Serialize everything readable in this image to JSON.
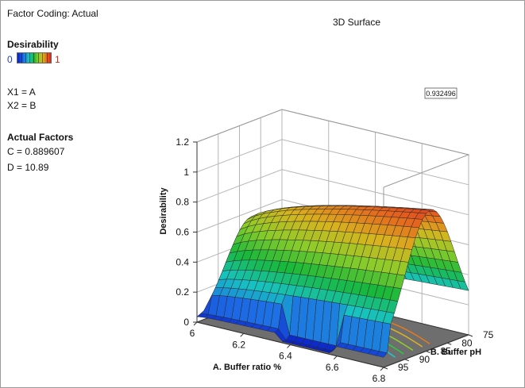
{
  "window": {
    "factor_coding": "Factor Coding: Actual",
    "plot_title": "3D Surface"
  },
  "legend": {
    "title": "Desirability",
    "min_label": "0",
    "max_label": "1",
    "colors": [
      "#0a1ec8",
      "#1e6ee6",
      "#17c2c2",
      "#18b83a",
      "#8ccc2a",
      "#d8b31e",
      "#e5661e",
      "#d8261e"
    ]
  },
  "factors": {
    "x1": "X1 = A",
    "x2": "X2 = B"
  },
  "actual_factors": {
    "title": "Actual Factors",
    "c": "C = 0.889607",
    "d": "D = 10.89"
  },
  "chart_data": {
    "type": "surface3d",
    "zlabel": "Desirability",
    "xlabel": "A. Buffer ratio %",
    "ylabel": "B. Buffer pH",
    "x_ticks": [
      "6",
      "6.2",
      "6.4",
      "6.6",
      "6.8"
    ],
    "y_ticks": [
      "75",
      "80",
      "85",
      "90",
      "95"
    ],
    "z_ticks": [
      "0",
      "0.2",
      "0.4",
      "0.6",
      "0.8",
      "1",
      "1.2"
    ],
    "xlim": [
      6,
      6.8
    ],
    "ylim": [
      75,
      95
    ],
    "zlim": [
      0,
      1.2
    ],
    "max_value_label": "0.932496",
    "grid": true
  }
}
